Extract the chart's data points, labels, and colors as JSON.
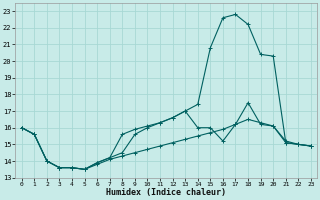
{
  "xlabel": "Humidex (Indice chaleur)",
  "bg_color": "#c8ebe8",
  "grid_color": "#a8d8d4",
  "line_color": "#006060",
  "xlim": [
    -0.5,
    23.5
  ],
  "ylim": [
    13,
    23.5
  ],
  "xticks": [
    0,
    1,
    2,
    3,
    4,
    5,
    6,
    7,
    8,
    9,
    10,
    11,
    12,
    13,
    14,
    15,
    16,
    17,
    18,
    19,
    20,
    21,
    22,
    23
  ],
  "yticks": [
    13,
    14,
    15,
    16,
    17,
    18,
    19,
    20,
    21,
    22,
    23
  ],
  "line1_x": [
    0,
    1,
    2,
    3,
    4,
    5,
    6,
    7,
    8,
    9,
    10,
    11,
    12,
    13,
    14,
    15,
    16,
    17,
    18,
    19,
    20,
    21,
    22,
    23
  ],
  "line1_y": [
    16.0,
    15.6,
    14.0,
    13.6,
    13.6,
    13.5,
    13.8,
    14.1,
    14.3,
    14.5,
    14.7,
    14.9,
    15.1,
    15.3,
    15.5,
    15.7,
    15.9,
    16.2,
    17.5,
    16.2,
    16.1,
    15.2,
    15.0,
    14.9
  ],
  "line2_x": [
    0,
    1,
    2,
    3,
    4,
    5,
    6,
    7,
    8,
    9,
    10,
    11,
    12,
    13,
    14,
    15,
    16,
    17,
    18,
    19,
    20,
    21,
    22,
    23
  ],
  "line2_y": [
    16.0,
    15.6,
    14.0,
    13.6,
    13.6,
    13.5,
    13.9,
    14.2,
    14.5,
    15.6,
    16.0,
    16.3,
    16.6,
    17.0,
    17.4,
    20.8,
    22.6,
    22.8,
    22.2,
    20.4,
    20.3,
    15.1,
    15.0,
    14.9
  ],
  "line3_x": [
    0,
    1,
    2,
    3,
    4,
    5,
    6,
    7,
    8,
    9,
    10,
    11,
    12,
    13,
    14,
    15,
    16,
    17,
    18,
    19,
    20,
    21,
    22,
    23
  ],
  "line3_y": [
    16.0,
    15.6,
    14.0,
    13.6,
    13.6,
    13.5,
    13.9,
    14.2,
    15.6,
    15.9,
    16.1,
    16.3,
    16.6,
    17.0,
    16.0,
    16.0,
    15.2,
    16.2,
    16.5,
    16.3,
    16.1,
    15.1,
    15.0,
    14.9
  ]
}
